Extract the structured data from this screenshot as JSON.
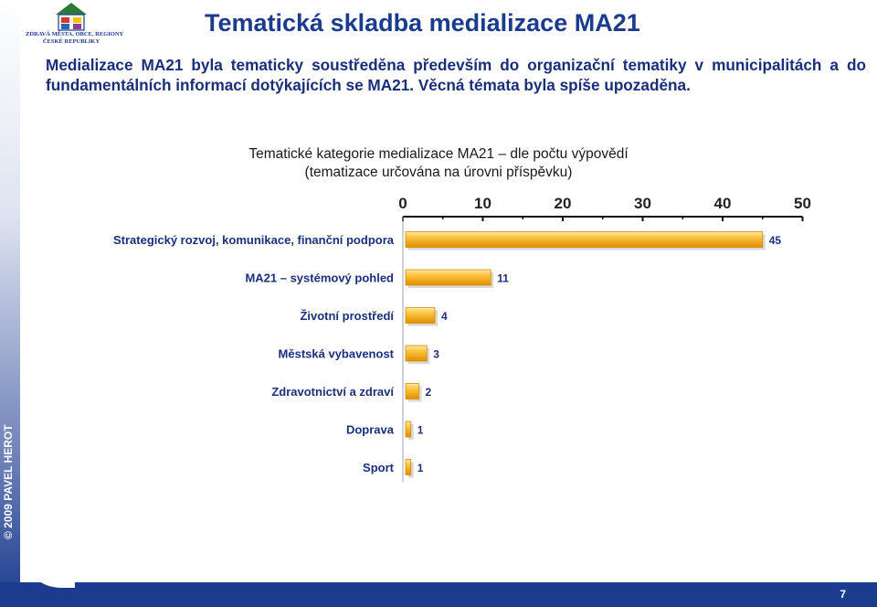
{
  "logo": {
    "line1": "ZDRAVÁ MĚSTA, OBCE, REGIONY",
    "line2": "ČESKÉ REPUBLIKY"
  },
  "slide": {
    "title": "Tematická skladba medializace MA21",
    "lead": "Medializace MA21 byla tematicky soustředěna především do organizační tematiky v municipalitách a do fundamentálních informací dotýkajících se MA21. Věcná témata byla spíše upozaděna.",
    "copyright": "© 2009 PAVEL HEROT",
    "page_number": "7"
  },
  "chart_data": {
    "type": "bar",
    "orientation": "horizontal",
    "title": "Tematické kategorie medializace MA21 – dle počtu výpovědí",
    "subtitle": "(tematizace určována na úrovni příspěvku)",
    "categories": [
      "Strategický rozvoj, komunikace, finanční podpora",
      "MA21 – systémový pohled",
      "Životní prostředí",
      "Městská vybavenost",
      "Zdravotnictví a zdraví",
      "Doprava",
      "Sport"
    ],
    "values": [
      45,
      11,
      4,
      3,
      2,
      1,
      1
    ],
    "xticks": [
      "0",
      "10",
      "20",
      "30",
      "40",
      "50"
    ],
    "xlim": [
      0,
      50
    ],
    "axis_position": "top",
    "grid": false,
    "legend": "none",
    "bar_color": "#f0a500",
    "bar_highlight": "#fde9a8"
  }
}
